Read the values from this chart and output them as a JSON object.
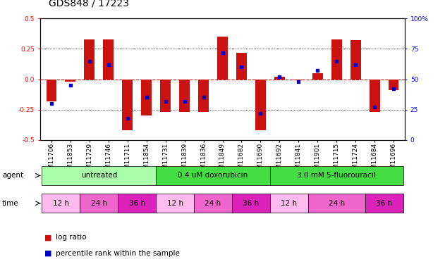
{
  "title": "GDS848 / 17223",
  "samples": [
    "GSM11706",
    "GSM11853",
    "GSM11729",
    "GSM11746",
    "GSM11711",
    "GSM11854",
    "GSM11731",
    "GSM11839",
    "GSM11836",
    "GSM11849",
    "GSM11682",
    "GSM11690",
    "GSM11692",
    "GSM11841",
    "GSM11901",
    "GSM11715",
    "GSM11724",
    "GSM11684",
    "GSM11696"
  ],
  "log_ratios": [
    -0.18,
    -0.02,
    0.33,
    0.33,
    -0.42,
    -0.3,
    -0.27,
    -0.27,
    -0.27,
    0.35,
    0.22,
    -0.42,
    0.02,
    -0.01,
    0.05,
    0.33,
    0.32,
    -0.27,
    -0.09
  ],
  "percentile_ranks": [
    30,
    45,
    65,
    62,
    18,
    35,
    32,
    32,
    35,
    72,
    60,
    22,
    52,
    48,
    57,
    65,
    62,
    27,
    42
  ],
  "agents": [
    {
      "label": "untreated",
      "start": 0,
      "end": 6,
      "color": "#aaffaa"
    },
    {
      "label": "0.4 uM doxorubicin",
      "start": 6,
      "end": 12,
      "color": "#44dd44"
    },
    {
      "label": "3.0 mM 5-fluorouracil",
      "start": 12,
      "end": 19,
      "color": "#44dd44"
    }
  ],
  "times": [
    {
      "label": "12 h",
      "start": 0,
      "end": 2,
      "color": "#ffbbee"
    },
    {
      "label": "24 h",
      "start": 2,
      "end": 4,
      "color": "#ee66cc"
    },
    {
      "label": "36 h",
      "start": 4,
      "end": 6,
      "color": "#dd22bb"
    },
    {
      "label": "12 h",
      "start": 6,
      "end": 8,
      "color": "#ffbbee"
    },
    {
      "label": "24 h",
      "start": 8,
      "end": 10,
      "color": "#ee66cc"
    },
    {
      "label": "36 h",
      "start": 10,
      "end": 12,
      "color": "#dd22bb"
    },
    {
      "label": "12 h",
      "start": 12,
      "end": 14,
      "color": "#ffbbee"
    },
    {
      "label": "24 h",
      "start": 14,
      "end": 17,
      "color": "#ee66cc"
    },
    {
      "label": "36 h",
      "start": 17,
      "end": 19,
      "color": "#dd22bb"
    }
  ],
  "ylim": [
    -0.5,
    0.5
  ],
  "yticks": [
    -0.5,
    -0.25,
    0.0,
    0.25,
    0.5
  ],
  "right_yticks": [
    0,
    25,
    50,
    75,
    100
  ],
  "bar_color": "#cc1111",
  "dot_color": "#0000cc",
  "hline_color": "#cc0000",
  "bg_color": "#ffffff",
  "title_fontsize": 10,
  "tick_fontsize": 6.5,
  "label_fontsize": 7.5,
  "legend_fontsize": 7.5
}
